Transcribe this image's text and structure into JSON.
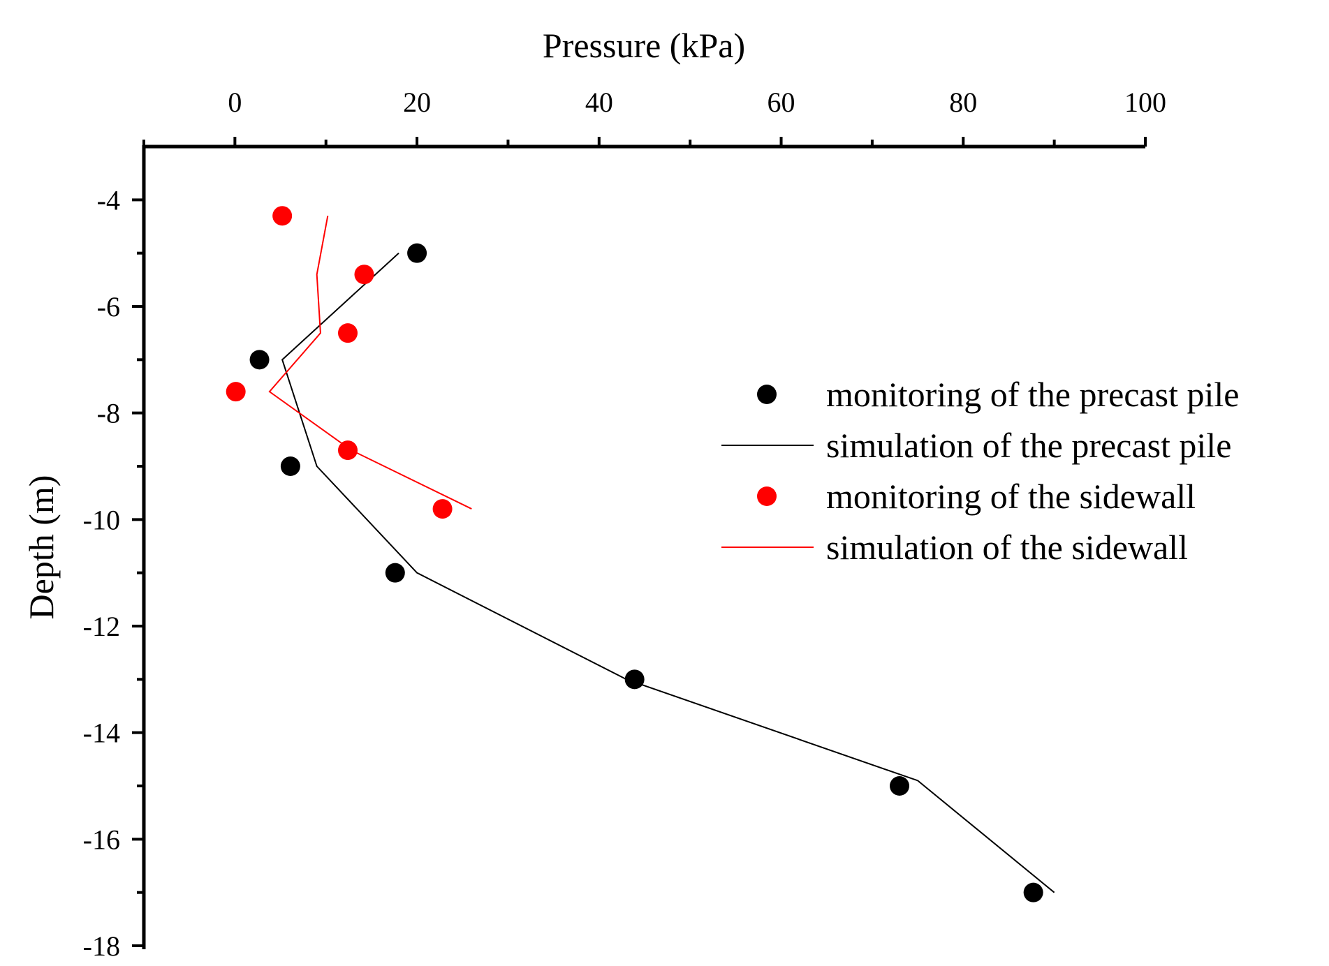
{
  "chart_data": {
    "type": "scatter",
    "xlabel": "Pressure (kPa)",
    "ylabel": "Depth (m)",
    "xlim": [
      -10,
      100
    ],
    "ylim": [
      -18,
      -3
    ],
    "x_ticks": [
      0,
      20,
      40,
      60,
      80,
      100
    ],
    "x_tick_labels": [
      "0",
      "20",
      "40",
      "60",
      "80",
      "100"
    ],
    "x_minor_ticks": [
      -10,
      10,
      30,
      50,
      70,
      90
    ],
    "y_ticks": [
      -4,
      -6,
      -8,
      -10,
      -12,
      -14,
      -16,
      -18
    ],
    "y_tick_labels": [
      "-4",
      "-6",
      "-8",
      "-10",
      "-12",
      "-14",
      "-16",
      "-18"
    ],
    "y_minor_ticks": [
      -5,
      -7,
      -9,
      -11,
      -13,
      -15,
      -17
    ],
    "x_axis_position": "top",
    "legend_position": "right",
    "series": [
      {
        "name": "monitoring of the precast pile",
        "kind": "points",
        "color": "#000000",
        "x": [
          20,
          2.7,
          6.1,
          17.6,
          43.9,
          73,
          87.7
        ],
        "y": [
          -5,
          -7,
          -9,
          -11,
          -13,
          -15,
          -17
        ]
      },
      {
        "name": "simulation of the precast pile",
        "kind": "line",
        "color": "#000000",
        "x": [
          18,
          5.2,
          9,
          20,
          43,
          75,
          90
        ],
        "y": [
          -5,
          -7,
          -9,
          -11,
          -13,
          -14.9,
          -17
        ]
      },
      {
        "name": "monitoring of the sidewall",
        "kind": "points",
        "color": "#ff0000",
        "x": [
          5.2,
          14.2,
          12.4,
          0.1,
          12.4,
          22.8
        ],
        "y": [
          -4.3,
          -5.4,
          -6.5,
          -7.6,
          -8.7,
          -9.8
        ]
      },
      {
        "name": "simulation of the sidewall",
        "kind": "line",
        "color": "#ff0000",
        "x": [
          10.2,
          9,
          9.4,
          3.8,
          12.8,
          26
        ],
        "y": [
          -4.3,
          -5.4,
          -6.5,
          -7.6,
          -8.7,
          -9.8
        ]
      }
    ]
  }
}
